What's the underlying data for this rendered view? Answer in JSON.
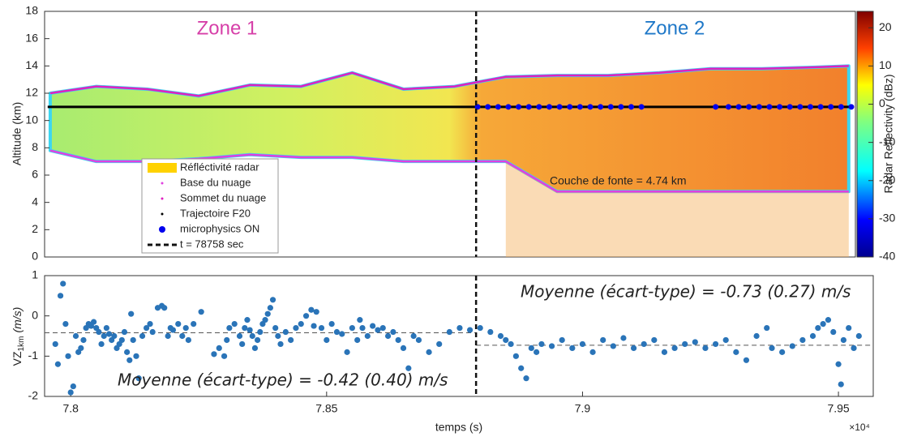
{
  "chart_data": [
    {
      "type": "radar-profile",
      "ylabel": "Altitude (km)",
      "xlim": [
        77949,
        79533
      ],
      "ylim": [
        0,
        18
      ],
      "yticks": [
        0,
        2,
        4,
        6,
        8,
        10,
        12,
        14,
        16,
        18
      ],
      "zone_labels": [
        "Zone 1",
        "Zone 2"
      ],
      "fill_name": "Réfléctivité radar",
      "fill_color": "#ffd200",
      "series": [
        {
          "name": "Base du nuage",
          "color": "#e040e0",
          "style": "line",
          "x": [
            77960,
            78050,
            78150,
            78250,
            78350,
            78450,
            78550,
            78650,
            78750,
            78850,
            78950,
            79050,
            79150,
            79250,
            79350,
            79450,
            79520
          ],
          "values": [
            7.8,
            7.0,
            7.0,
            7.2,
            7.5,
            7.3,
            7.3,
            7.0,
            7.0,
            7.0,
            4.8,
            4.8,
            4.8,
            4.8,
            4.8,
            4.8,
            4.8
          ]
        },
        {
          "name": "Sommet du nuage",
          "color": "#e020c0",
          "style": "line",
          "x": [
            77960,
            78050,
            78150,
            78250,
            78350,
            78450,
            78550,
            78650,
            78750,
            78850,
            78950,
            79050,
            79150,
            79250,
            79350,
            79450,
            79520
          ],
          "values": [
            12.0,
            12.5,
            12.3,
            11.8,
            12.6,
            12.5,
            13.5,
            12.3,
            12.5,
            13.2,
            13.3,
            13.3,
            13.5,
            13.8,
            13.8,
            13.9,
            14.0
          ]
        },
        {
          "name": "Trajectoire F20",
          "color": "#000000",
          "style": "line",
          "x": [
            77955,
            79530
          ],
          "values": [
            11,
            11
          ]
        },
        {
          "name": "microphysics ON",
          "color": "#0000ee",
          "style": "dots",
          "x": [
            78795,
            78815,
            78835,
            78855,
            78875,
            78895,
            78915,
            78935,
            78955,
            78975,
            78995,
            79015,
            79035,
            79055,
            79075,
            79095,
            79115,
            79260,
            79285,
            79305,
            79325,
            79345,
            79365,
            79385,
            79405,
            79425,
            79445,
            79465,
            79485,
            79505,
            79525
          ],
          "values": [
            11,
            11,
            11,
            11,
            11,
            11,
            11,
            11,
            11,
            11,
            11,
            11,
            11,
            11,
            11,
            11,
            11,
            11,
            11,
            11,
            11,
            11,
            11,
            11,
            11,
            11,
            11,
            11,
            11,
            11,
            11
          ]
        }
      ],
      "vline": {
        "name": "t = 78758 sec",
        "x": 78792
      },
      "annotation": "Couche de fonte = 4.74 km",
      "colorbar": {
        "label": "Radar Reflectivity (dBz)",
        "lim": [
          -40,
          24.3
        ],
        "ticks": [
          -40,
          -30,
          -20,
          -10,
          0,
          10,
          20
        ]
      }
    },
    {
      "type": "scatter",
      "xlabel": "temps (s)",
      "x_exponent_label": "×10⁴",
      "ylabel_main": "VZ",
      "ylabel_sub": "1km",
      "ylabel_unit": "(m/s)",
      "xlim": [
        77949,
        79568
      ],
      "ylim": [
        -2,
        1
      ],
      "xticks": [
        {
          "value": 78000,
          "label": "7.8"
        },
        {
          "value": 78500,
          "label": "7.85"
        },
        {
          "value": 79000,
          "label": "7.9"
        },
        {
          "value": 79500,
          "label": "7.95"
        }
      ],
      "yticks": [
        -2,
        -1,
        0,
        1
      ],
      "color": "#2a74b8",
      "x": [
        77970,
        77975,
        77980,
        77985,
        77990,
        77995,
        78000,
        78005,
        78010,
        78015,
        78020,
        78025,
        78030,
        78035,
        78040,
        78045,
        78050,
        78055,
        78060,
        78065,
        78070,
        78075,
        78080,
        78085,
        78090,
        78095,
        78100,
        78105,
        78110,
        78115,
        78118,
        78122,
        78128,
        78133,
        78140,
        78148,
        78155,
        78160,
        78170,
        78178,
        78183,
        78190,
        78195,
        78200,
        78210,
        78218,
        78225,
        78230,
        78240,
        78255,
        78280,
        78290,
        78300,
        78305,
        78310,
        78320,
        78330,
        78335,
        78340,
        78345,
        78350,
        78355,
        78360,
        78365,
        78370,
        78375,
        78380,
        78385,
        78390,
        78395,
        78400,
        78405,
        78410,
        78420,
        78430,
        78440,
        78450,
        78460,
        78470,
        78475,
        78480,
        78490,
        78500,
        78510,
        78520,
        78530,
        78540,
        78550,
        78560,
        78565,
        78570,
        78580,
        78590,
        78600,
        78610,
        78620,
        78630,
        78640,
        78650,
        78660,
        78670,
        78680,
        78700,
        78720,
        78740,
        78760,
        78780,
        78800,
        78820,
        78840,
        78850,
        78860,
        78870,
        78880,
        78890,
        78900,
        78910,
        78920,
        78940,
        78960,
        78980,
        79000,
        79020,
        79040,
        79060,
        79080,
        79100,
        79120,
        79140,
        79160,
        79180,
        79200,
        79220,
        79240,
        79260,
        79280,
        79300,
        79320,
        79340,
        79360,
        79370,
        79390,
        79410,
        79430,
        79450,
        79460,
        79470,
        79480,
        79490,
        79500,
        79505,
        79510,
        79520,
        79530,
        79540
      ],
      "values": [
        -0.7,
        -1.2,
        0.5,
        0.8,
        -0.2,
        -1.0,
        -1.9,
        -1.75,
        -0.5,
        -0.9,
        -0.8,
        -0.6,
        -0.3,
        -0.2,
        -0.25,
        -0.15,
        -0.3,
        -0.4,
        -0.7,
        -0.5,
        -0.3,
        -0.45,
        -0.6,
        -0.5,
        -0.8,
        -0.7,
        -0.6,
        -0.4,
        -0.9,
        -1.1,
        0.05,
        -0.6,
        -1.0,
        -1.55,
        -0.5,
        -0.3,
        -0.2,
        -0.4,
        0.2,
        0.25,
        0.2,
        -0.5,
        -0.3,
        -0.35,
        -0.2,
        -0.5,
        -0.3,
        -0.6,
        -0.2,
        0.1,
        -0.95,
        -0.8,
        -1.0,
        -0.6,
        -0.3,
        -0.2,
        -0.5,
        -0.7,
        -0.3,
        -0.1,
        -0.35,
        -0.5,
        -0.8,
        -0.6,
        -0.4,
        -0.2,
        -0.1,
        0.05,
        0.2,
        0.4,
        -0.3,
        -0.5,
        -0.7,
        -0.4,
        -0.6,
        -0.3,
        -0.2,
        0.0,
        0.15,
        -0.25,
        0.1,
        -0.3,
        -0.6,
        -0.2,
        -0.4,
        -0.45,
        -0.9,
        -0.3,
        -0.6,
        -0.1,
        -0.3,
        -0.5,
        -0.25,
        -0.35,
        -0.3,
        -0.5,
        -0.4,
        -0.6,
        -0.8,
        -1.3,
        -0.5,
        -0.6,
        -0.9,
        -0.7,
        -0.4,
        -0.3,
        -0.35,
        -0.3,
        -0.4,
        -0.5,
        -0.6,
        -0.7,
        -1.0,
        -1.3,
        -1.55,
        -0.8,
        -0.9,
        -0.7,
        -0.75,
        -0.6,
        -0.8,
        -0.7,
        -0.9,
        -0.6,
        -0.75,
        -0.55,
        -0.8,
        -0.7,
        -0.6,
        -0.9,
        -0.8,
        -0.7,
        -0.65,
        -0.8,
        -0.7,
        -0.6,
        -0.9,
        -1.1,
        -0.5,
        -0.3,
        -0.8,
        -0.9,
        -0.75,
        -0.6,
        -0.5,
        -0.3,
        -0.2,
        -0.1,
        -0.4,
        -1.2,
        -1.7,
        -0.6,
        -0.3,
        -0.8,
        -0.5
      ],
      "means": [
        {
          "label": "Moyenne (écart-type) = -0.42 (0.40) m/s",
          "value": -0.42,
          "x": [
            77949,
            78792
          ]
        },
        {
          "label": "Moyenne (écart-type) = -0.73 (0.27) m/s",
          "value": -0.73,
          "x": [
            78792,
            79568
          ]
        }
      ],
      "vline_x": 78792
    }
  ]
}
